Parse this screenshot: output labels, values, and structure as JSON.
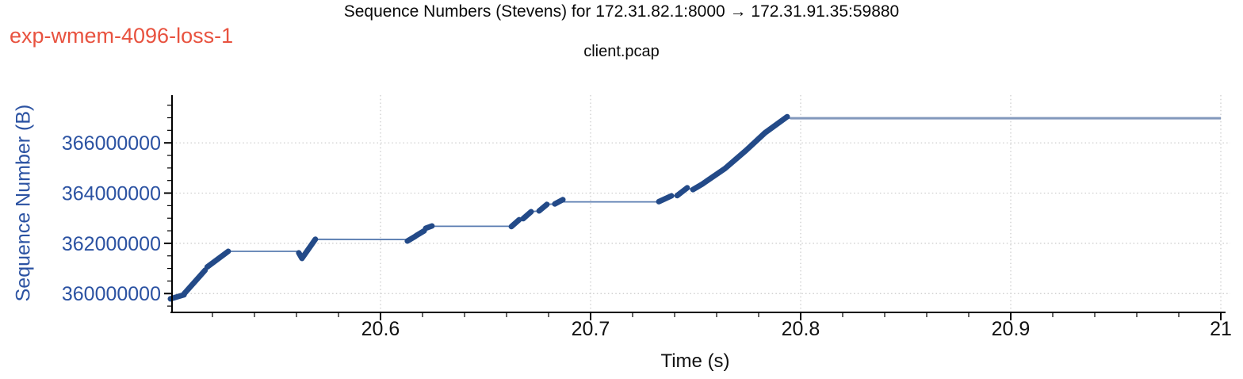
{
  "annotation": {
    "label": "exp-wmem-4096-loss-1",
    "color": "#e8523f"
  },
  "chart_data": {
    "type": "line",
    "title": "Sequence Numbers (Stevens) for 172.31.82.1:8000 → 172.31.91.35:59880",
    "subtitle": "client.pcap",
    "xlabel": "Time (s)",
    "ylabel": "Sequence Number (B)",
    "xlim": [
      20.5,
      21.0
    ],
    "ylim": [
      359250000,
      367900000
    ],
    "x_major_ticks": [
      20.6,
      20.7,
      20.8,
      20.9,
      21.0
    ],
    "x_tick_labels": [
      "20.6",
      "20.7",
      "20.8",
      "20.9",
      "21"
    ],
    "x_minor_step": 0.02,
    "y_major_ticks": [
      360000000,
      362000000,
      364000000,
      366000000
    ],
    "y_tick_labels": [
      "360000000",
      "362000000",
      "364000000",
      "366000000"
    ],
    "y_minor_step": 500000,
    "grid": {
      "style": "dotted",
      "at_major_ticks": true
    },
    "legend": "none",
    "colors": {
      "burst": "#234a88",
      "trace": "#5a7db1",
      "plateau": "#8298bc",
      "grid": "#c9c9c9",
      "axis": "#000000",
      "y_text": "#2b52a2",
      "x_text": "#111111"
    },
    "start_seq": 359790000,
    "final_plateau_seq": 366980000,
    "trace": [
      [
        20.5,
        359790000
      ],
      [
        20.5065,
        359960000
      ],
      [
        20.5165,
        360930000
      ],
      [
        20.5175,
        361060000
      ],
      [
        20.5275,
        361680000
      ],
      [
        20.5611,
        361680000
      ],
      [
        20.5626,
        361380000
      ],
      [
        20.569,
        362160000
      ],
      [
        20.6128,
        362150000
      ],
      [
        20.6166,
        362290000
      ],
      [
        20.6208,
        362500000
      ],
      [
        20.6245,
        362680000
      ],
      [
        20.6623,
        362680000
      ],
      [
        20.666,
        362940000
      ],
      [
        20.6679,
        362980000
      ],
      [
        20.6717,
        363260000
      ],
      [
        20.6755,
        363290000
      ],
      [
        20.6792,
        363550000
      ],
      [
        20.683,
        363570000
      ],
      [
        20.6868,
        363650000
      ],
      [
        20.7325,
        363650000
      ],
      [
        20.7385,
        363890000
      ],
      [
        20.7412,
        363900000
      ],
      [
        20.746,
        364200000
      ],
      [
        20.7487,
        364140000
      ],
      [
        20.7532,
        364360000
      ],
      [
        20.764,
        364980000
      ],
      [
        20.774,
        365700000
      ],
      [
        20.783,
        366400000
      ],
      [
        20.7936,
        367000000
      ],
      [
        20.795,
        366980000
      ],
      [
        21.0,
        366980000
      ]
    ],
    "bursts": [
      [
        [
          20.5,
          359790000
        ],
        [
          20.5065,
          359950000
        ]
      ],
      [
        [
          20.5065,
          359990000
        ],
        [
          20.5165,
          360930000
        ]
      ],
      [
        [
          20.5175,
          361060000
        ],
        [
          20.5275,
          361680000
        ]
      ],
      [
        [
          20.5611,
          361620000
        ],
        [
          20.5626,
          361400000
        ],
        [
          20.569,
          362160000
        ]
      ],
      [
        [
          20.6128,
          362090000
        ],
        [
          20.6166,
          362280000
        ]
      ],
      [
        [
          20.617,
          362310000
        ],
        [
          20.6208,
          362500000
        ]
      ],
      [
        [
          20.6215,
          362600000
        ],
        [
          20.6245,
          362690000
        ]
      ],
      [
        [
          20.6623,
          362670000
        ],
        [
          20.666,
          362940000
        ]
      ],
      [
        [
          20.6679,
          362980000
        ],
        [
          20.6717,
          363260000
        ]
      ],
      [
        [
          20.6755,
          363290000
        ],
        [
          20.6792,
          363550000
        ]
      ],
      [
        [
          20.683,
          363570000
        ],
        [
          20.6868,
          363740000
        ]
      ],
      [
        [
          20.7325,
          363660000
        ],
        [
          20.7385,
          363890000
        ]
      ],
      [
        [
          20.7412,
          363900000
        ],
        [
          20.746,
          364210000
        ]
      ],
      [
        [
          20.7487,
          364140000
        ],
        [
          20.7532,
          364360000
        ],
        [
          20.764,
          364980000
        ],
        [
          20.774,
          365700000
        ],
        [
          20.783,
          366400000
        ],
        [
          20.7936,
          367040000
        ]
      ]
    ],
    "plateau": [
      [
        20.795,
        366980000
      ],
      [
        21.0,
        366980000
      ]
    ]
  }
}
